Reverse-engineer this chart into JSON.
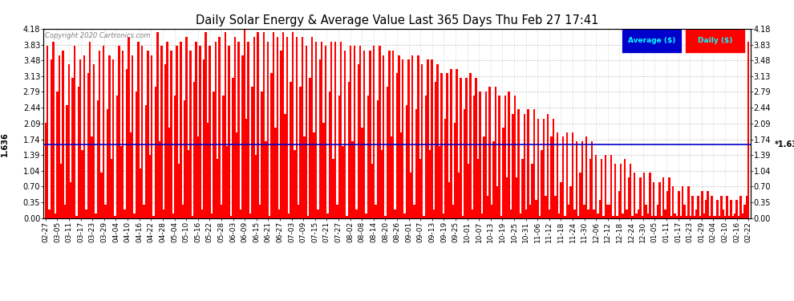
{
  "title": "Daily Solar Energy & Average Value Last 365 Days Thu Feb 27 17:41",
  "copyright": "Copyright 2020 Cartronics.com",
  "average_value": 1.636,
  "ylim": [
    0.0,
    4.18
  ],
  "yticks": [
    0.0,
    0.35,
    0.7,
    1.04,
    1.39,
    1.74,
    2.09,
    2.44,
    2.79,
    3.13,
    3.48,
    3.83,
    4.18
  ],
  "bar_color": "#FF0000",
  "average_line_color": "#0000CC",
  "background_color": "#FFFFFF",
  "grid_color": "#999999",
  "legend_avg_bg": "#0000CC",
  "legend_daily_bg": "#FF0000",
  "legend_text_color": "#00FFFF",
  "xtick_labels": [
    "02-27",
    "03-05",
    "03-11",
    "03-17",
    "03-23",
    "03-29",
    "04-04",
    "04-10",
    "04-16",
    "04-22",
    "04-28",
    "05-04",
    "05-10",
    "05-16",
    "05-22",
    "05-28",
    "06-03",
    "06-09",
    "06-15",
    "06-21",
    "06-27",
    "07-03",
    "07-09",
    "07-15",
    "07-21",
    "07-27",
    "08-02",
    "08-08",
    "08-14",
    "08-20",
    "08-26",
    "09-01",
    "09-07",
    "09-13",
    "09-19",
    "09-25",
    "10-01",
    "10-07",
    "10-13",
    "10-19",
    "10-25",
    "10-31",
    "11-06",
    "11-12",
    "11-18",
    "11-24",
    "11-30",
    "12-06",
    "12-12",
    "12-18",
    "12-24",
    "12-30",
    "01-05",
    "01-11",
    "01-17",
    "01-23",
    "01-29",
    "02-04",
    "02-10",
    "02-16",
    "02-22"
  ],
  "n_bars": 365,
  "values": [
    2.1,
    3.8,
    0.2,
    3.5,
    3.9,
    0.1,
    2.8,
    3.6,
    1.2,
    3.7,
    0.3,
    2.5,
    3.4,
    0.8,
    3.1,
    3.8,
    0.05,
    2.9,
    3.5,
    1.5,
    3.6,
    0.2,
    3.2,
    3.9,
    1.8,
    3.4,
    0.1,
    2.6,
    3.7,
    1.0,
    3.8,
    0.3,
    2.4,
    3.6,
    1.3,
    3.5,
    0.05,
    2.7,
    3.8,
    1.6,
    3.7,
    0.2,
    3.3,
    4.0,
    1.9,
    3.6,
    0.1,
    2.8,
    3.9,
    1.1,
    3.8,
    0.3,
    2.5,
    3.7,
    1.4,
    3.6,
    0.05,
    2.9,
    4.1,
    1.7,
    3.8,
    0.2,
    3.4,
    3.9,
    2.0,
    3.7,
    0.1,
    2.7,
    3.8,
    1.2,
    3.9,
    0.3,
    2.6,
    4.0,
    1.5,
    3.7,
    0.05,
    3.0,
    3.9,
    1.8,
    3.8,
    0.2,
    3.5,
    4.1,
    2.1,
    3.8,
    0.1,
    2.8,
    3.9,
    1.3,
    4.0,
    0.3,
    2.7,
    4.1,
    1.6,
    3.8,
    0.05,
    3.1,
    4.0,
    1.9,
    3.9,
    0.2,
    3.6,
    4.2,
    2.2,
    3.9,
    0.1,
    2.9,
    4.0,
    1.4,
    4.1,
    0.3,
    2.8,
    4.1,
    1.7,
    3.9,
    0.05,
    3.2,
    4.1,
    2.0,
    4.0,
    0.2,
    3.7,
    4.1,
    2.3,
    4.0,
    0.1,
    3.0,
    4.1,
    1.5,
    4.0,
    0.3,
    2.9,
    4.0,
    1.8,
    3.8,
    0.05,
    3.1,
    4.0,
    1.9,
    3.9,
    0.2,
    3.5,
    3.9,
    2.1,
    3.8,
    0.1,
    2.8,
    3.9,
    1.3,
    3.9,
    0.3,
    2.7,
    3.9,
    1.6,
    3.7,
    0.05,
    3.0,
    3.8,
    1.7,
    3.8,
    0.2,
    3.4,
    3.8,
    2.0,
    3.7,
    0.1,
    2.7,
    3.7,
    1.2,
    3.8,
    0.3,
    2.6,
    3.8,
    1.5,
    3.6,
    0.05,
    2.9,
    3.7,
    1.8,
    3.7,
    0.2,
    3.2,
    3.6,
    1.9,
    3.5,
    0.1,
    2.5,
    3.5,
    1.0,
    3.6,
    0.3,
    2.4,
    3.6,
    1.3,
    3.4,
    0.05,
    2.7,
    3.5,
    1.5,
    3.5,
    0.2,
    3.0,
    3.4,
    1.6,
    3.2,
    0.1,
    2.2,
    3.2,
    0.8,
    3.3,
    0.3,
    2.1,
    3.3,
    1.0,
    3.1,
    0.05,
    2.4,
    3.1,
    1.2,
    3.2,
    0.2,
    2.7,
    3.1,
    1.3,
    2.8,
    0.1,
    1.8,
    2.8,
    0.5,
    2.9,
    0.3,
    1.7,
    2.9,
    0.7,
    2.7,
    0.05,
    2.0,
    2.7,
    0.9,
    2.8,
    0.2,
    2.3,
    2.7,
    0.9,
    2.4,
    0.1,
    1.3,
    2.3,
    0.2,
    2.4,
    0.3,
    1.2,
    2.4,
    0.4,
    2.2,
    0.05,
    1.5,
    2.2,
    0.5,
    2.3,
    0.2,
    1.8,
    2.2,
    0.5,
    1.9,
    0.1,
    0.8,
    1.8,
    0.05,
    1.9,
    0.3,
    0.7,
    1.9,
    0.2,
    1.7,
    0.05,
    1.0,
    1.7,
    0.3,
    1.8,
    0.2,
    1.3,
    1.7,
    0.2,
    1.4,
    0.1,
    0.4,
    1.3,
    0.05,
    1.4,
    0.3,
    0.3,
    1.4,
    0.05,
    1.2,
    0.05,
    0.6,
    1.2,
    0.1,
    1.3,
    0.2,
    0.9,
    1.2,
    0.05,
    1.0,
    0.1,
    0.2,
    0.9,
    0.05,
    1.0,
    0.3,
    0.1,
    1.0,
    0.05,
    0.8,
    0.05,
    0.3,
    0.8,
    0.05,
    0.9,
    0.2,
    0.6,
    0.9,
    0.05,
    0.7,
    0.1,
    0.05,
    0.6,
    0.05,
    0.7,
    0.3,
    0.05,
    0.7,
    0.05,
    0.5,
    0.05,
    0.2,
    0.5,
    0.05,
    0.6,
    0.1,
    0.4,
    0.6,
    0.05,
    0.5,
    0.05,
    0.05,
    0.4,
    0.05,
    0.5,
    0.2,
    0.05,
    0.5,
    0.05,
    0.4,
    0.05,
    0.1,
    0.4,
    0.05,
    0.5,
    0.1,
    0.3,
    0.5,
    3.9
  ]
}
